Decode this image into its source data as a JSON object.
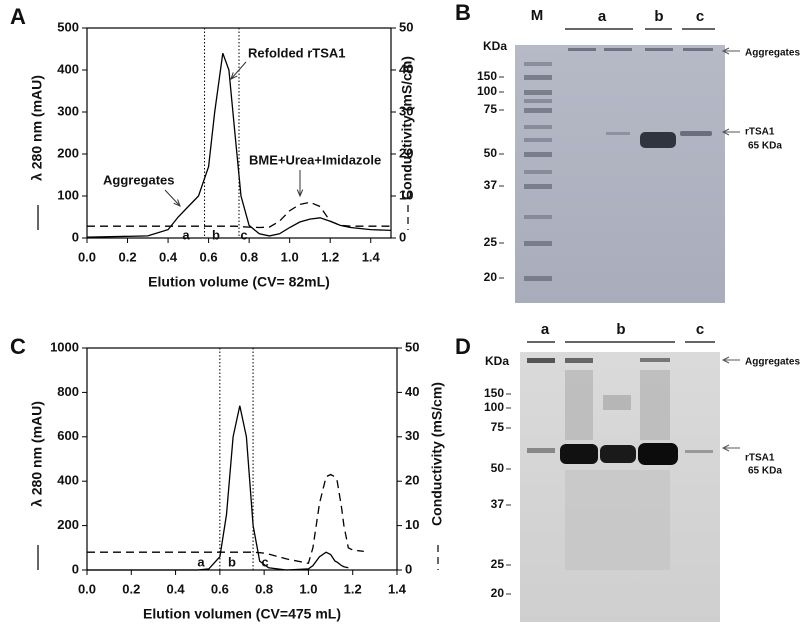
{
  "chart_data": [
    {
      "type": "line",
      "panel": "A",
      "xlabel": "Elution volume  (CV= 82mL)",
      "ylabel": "λ 280 nm    (mAU)",
      "y2label": "Conductivity  (mS/cm)",
      "x": [
        0,
        0.3,
        0.4,
        0.45,
        0.5,
        0.55,
        0.6,
        0.63,
        0.67,
        0.7,
        0.73,
        0.76,
        0.8,
        0.85,
        0.9,
        0.95,
        1.0,
        1.05,
        1.1,
        1.15,
        1.2,
        1.25,
        1.3,
        1.4,
        1.5
      ],
      "series": [
        {
          "style": "solid",
          "color": "#000000",
          "values": [
            2,
            5,
            20,
            50,
            75,
            100,
            170,
            300,
            440,
            400,
            250,
            100,
            30,
            10,
            5,
            10,
            25,
            38,
            45,
            48,
            40,
            30,
            25,
            20,
            18
          ]
        },
        {
          "style": "dashed",
          "color": "#000000",
          "axis": "y2",
          "values": [
            2.8,
            2.8,
            2.8,
            2.8,
            2.8,
            2.8,
            2.8,
            2.8,
            2.8,
            2.8,
            2.8,
            2.7,
            2.6,
            2.5,
            2.6,
            4,
            6.5,
            8,
            8.5,
            7.5,
            4,
            3,
            2.8,
            2.8,
            2.8
          ]
        }
      ],
      "xlim": [
        0,
        1.5
      ],
      "xticks": [
        {
          "value": 0,
          "label": "0.0"
        },
        0.2,
        0.4,
        0.6,
        0.8,
        {
          "value": 1,
          "label": "1.0"
        },
        1.2,
        1.4
      ],
      "ylim": [
        0,
        500
      ],
      "yticks": [
        0,
        100,
        200,
        300,
        400,
        500
      ],
      "y2lim": [
        0,
        50
      ],
      "y2ticks": [
        0,
        10,
        20,
        30,
        40,
        50
      ],
      "vlines": [
        0.58,
        0.75
      ],
      "annotations": [
        "Refolded rTSA1",
        "Aggregates",
        "BME+Urea+Imidazole",
        "a",
        "b",
        "c"
      ]
    },
    {
      "type": "line",
      "panel": "C",
      "xlabel": "Elution volumen (CV=475 mL)",
      "ylabel": "λ 280 nm    (mAU)",
      "y2label": "Conductivity  (mS/cm)",
      "x": [
        0,
        0.5,
        0.55,
        0.6,
        0.63,
        0.66,
        0.69,
        0.72,
        0.75,
        0.78,
        0.8,
        0.82,
        0.9,
        1.0,
        1.02,
        1.05,
        1.08,
        1.1,
        1.12,
        1.13,
        1.15,
        1.16,
        1.18,
        1.2,
        1.25
      ],
      "series": [
        {
          "style": "solid",
          "color": "#000000",
          "values": [
            0,
            0,
            5,
            60,
            250,
            600,
            740,
            600,
            200,
            40,
            25,
            10,
            0,
            5,
            20,
            60,
            80,
            70,
            40,
            35,
            20,
            15,
            10,
            null,
            null
          ]
        },
        {
          "style": "dashed",
          "color": "#000000",
          "axis": "y2",
          "values": [
            4,
            4,
            4,
            4,
            4,
            4,
            4,
            4,
            4,
            3.9,
            3.8,
            3.6,
            2.5,
            1.5,
            5,
            15,
            21,
            21.5,
            21,
            20,
            14,
            10,
            5,
            4.5,
            4.2
          ]
        }
      ],
      "xlim": [
        0,
        1.4
      ],
      "xticks": [
        {
          "value": 0,
          "label": "0.0"
        },
        0.2,
        0.4,
        0.6,
        0.8,
        {
          "value": 1,
          "label": "1.0"
        },
        1.2,
        1.4
      ],
      "ylim": [
        0,
        1000
      ],
      "yticks": [
        0,
        200,
        400,
        600,
        800,
        1000
      ],
      "y2lim": [
        0,
        50
      ],
      "y2ticks": [
        0,
        10,
        20,
        30,
        40,
        50
      ],
      "vlines": [
        0.6,
        0.75
      ],
      "annotations": [
        "a",
        "b",
        "c"
      ]
    }
  ],
  "gels": [
    {
      "panel": "B",
      "lanes": [
        "M",
        "a",
        "b",
        "c"
      ],
      "unit": "KDa",
      "markers": [
        "150",
        "100",
        "75",
        "50",
        "37",
        "25",
        "20"
      ],
      "labels": [
        "Aggregates",
        "rTSA1",
        "65 KDa"
      ]
    },
    {
      "panel": "D",
      "lanes": [
        "a",
        "b",
        "c"
      ],
      "unit": "KDa",
      "markers": [
        "150",
        "100",
        "75",
        "50",
        "37",
        "25",
        "20"
      ],
      "labels": [
        "Aggregates",
        "rTSA1",
        "65 KDa"
      ]
    }
  ]
}
